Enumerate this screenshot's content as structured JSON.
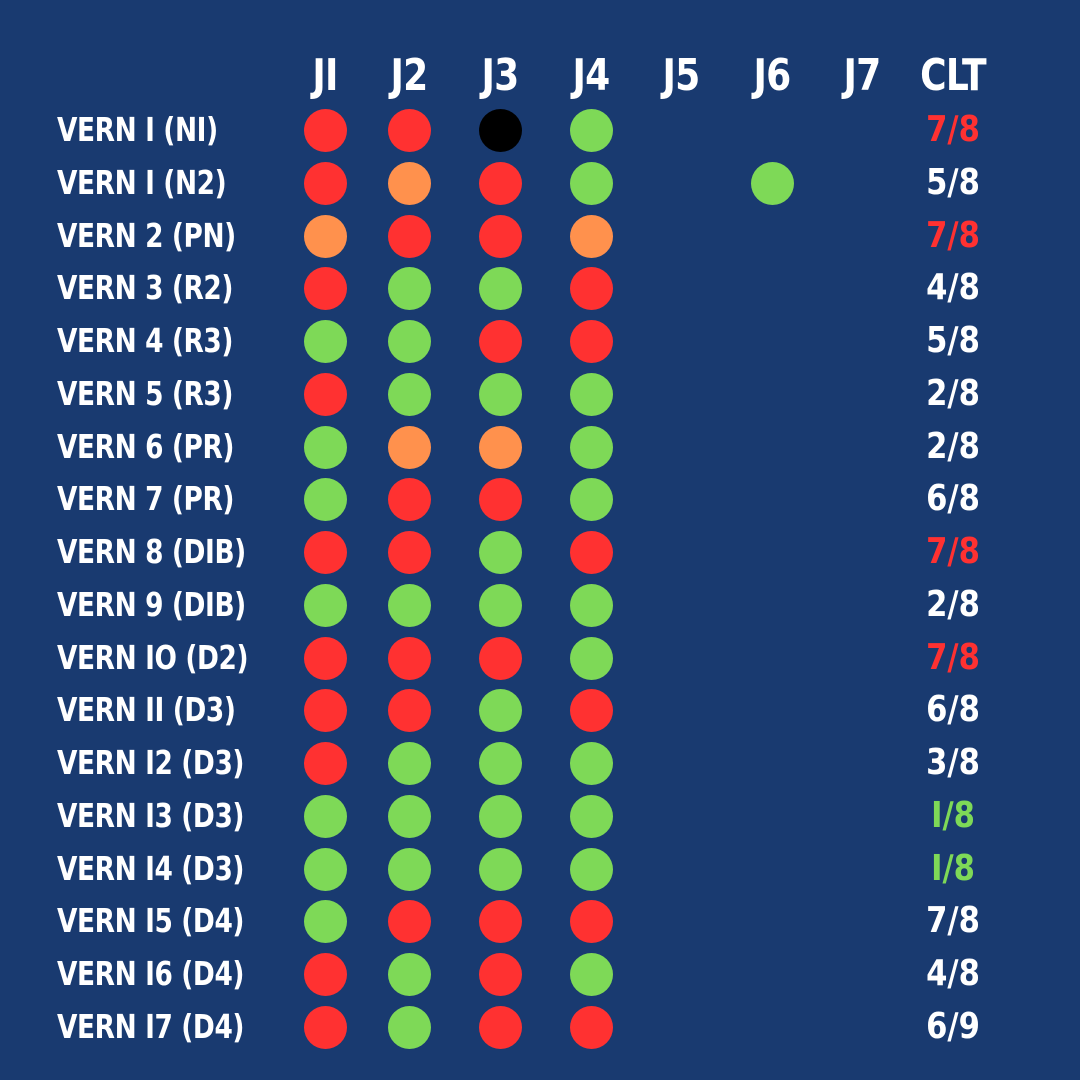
{
  "columns": [
    "JI",
    "J2",
    "J3",
    "J4",
    "J5",
    "J6",
    "J7"
  ],
  "clt_header": "CLT",
  "colors": {
    "background": "#193a70",
    "red": "#ff3131",
    "green": "#7ed957",
    "orange": "#ff914d",
    "black": "#000000",
    "white": "#ffffff"
  },
  "rows": [
    {
      "label": "VERN I (NI)",
      "marks": [
        "red",
        "red",
        "black",
        "green",
        null,
        null,
        null
      ],
      "clt": "7/8",
      "clt_color": "red"
    },
    {
      "label": "VERN I (N2)",
      "marks": [
        "red",
        "orange",
        "red",
        "green",
        null,
        "green",
        null
      ],
      "clt": "5/8",
      "clt_color": "white"
    },
    {
      "label": "VERN 2 (PN)",
      "marks": [
        "orange",
        "red",
        "red",
        "orange",
        null,
        null,
        null
      ],
      "clt": "7/8",
      "clt_color": "red"
    },
    {
      "label": "VERN 3 (R2)",
      "marks": [
        "red",
        "green",
        "green",
        "red",
        null,
        null,
        null
      ],
      "clt": "4/8",
      "clt_color": "white"
    },
    {
      "label": "VERN 4 (R3)",
      "marks": [
        "green",
        "green",
        "red",
        "red",
        null,
        null,
        null
      ],
      "clt": "5/8",
      "clt_color": "white"
    },
    {
      "label": "VERN 5 (R3)",
      "marks": [
        "red",
        "green",
        "green",
        "green",
        null,
        null,
        null
      ],
      "clt": "2/8",
      "clt_color": "white"
    },
    {
      "label": "VERN 6 (PR)",
      "marks": [
        "green",
        "orange",
        "orange",
        "green",
        null,
        null,
        null
      ],
      "clt": "2/8",
      "clt_color": "white"
    },
    {
      "label": "VERN 7 (PR)",
      "marks": [
        "green",
        "red",
        "red",
        "green",
        null,
        null,
        null
      ],
      "clt": "6/8",
      "clt_color": "white"
    },
    {
      "label": "VERN 8 (DIB)",
      "marks": [
        "red",
        "red",
        "green",
        "red",
        null,
        null,
        null
      ],
      "clt": "7/8",
      "clt_color": "red"
    },
    {
      "label": "VERN 9 (DIB)",
      "marks": [
        "green",
        "green",
        "green",
        "green",
        null,
        null,
        null
      ],
      "clt": "2/8",
      "clt_color": "white"
    },
    {
      "label": "VERN IO (D2)",
      "marks": [
        "red",
        "red",
        "red",
        "green",
        null,
        null,
        null
      ],
      "clt": "7/8",
      "clt_color": "red"
    },
    {
      "label": "VERN II (D3)",
      "marks": [
        "red",
        "red",
        "green",
        "red",
        null,
        null,
        null
      ],
      "clt": "6/8",
      "clt_color": "white"
    },
    {
      "label": "VERN I2 (D3)",
      "marks": [
        "red",
        "green",
        "green",
        "green",
        null,
        null,
        null
      ],
      "clt": "3/8",
      "clt_color": "white"
    },
    {
      "label": "VERN I3 (D3)",
      "marks": [
        "green",
        "green",
        "green",
        "green",
        null,
        null,
        null
      ],
      "clt": "I/8",
      "clt_color": "green"
    },
    {
      "label": "VERN I4 (D3)",
      "marks": [
        "green",
        "green",
        "green",
        "green",
        null,
        null,
        null
      ],
      "clt": "I/8",
      "clt_color": "green"
    },
    {
      "label": "VERN I5 (D4)",
      "marks": [
        "green",
        "red",
        "red",
        "red",
        null,
        null,
        null
      ],
      "clt": "7/8",
      "clt_color": "white"
    },
    {
      "label": "VERN I6 (D4)",
      "marks": [
        "red",
        "green",
        "red",
        "green",
        null,
        null,
        null
      ],
      "clt": "4/8",
      "clt_color": "white"
    },
    {
      "label": "VERN I7 (D4)",
      "marks": [
        "red",
        "green",
        "red",
        "red",
        null,
        null,
        null
      ],
      "clt": "6/9",
      "clt_color": "white"
    }
  ]
}
